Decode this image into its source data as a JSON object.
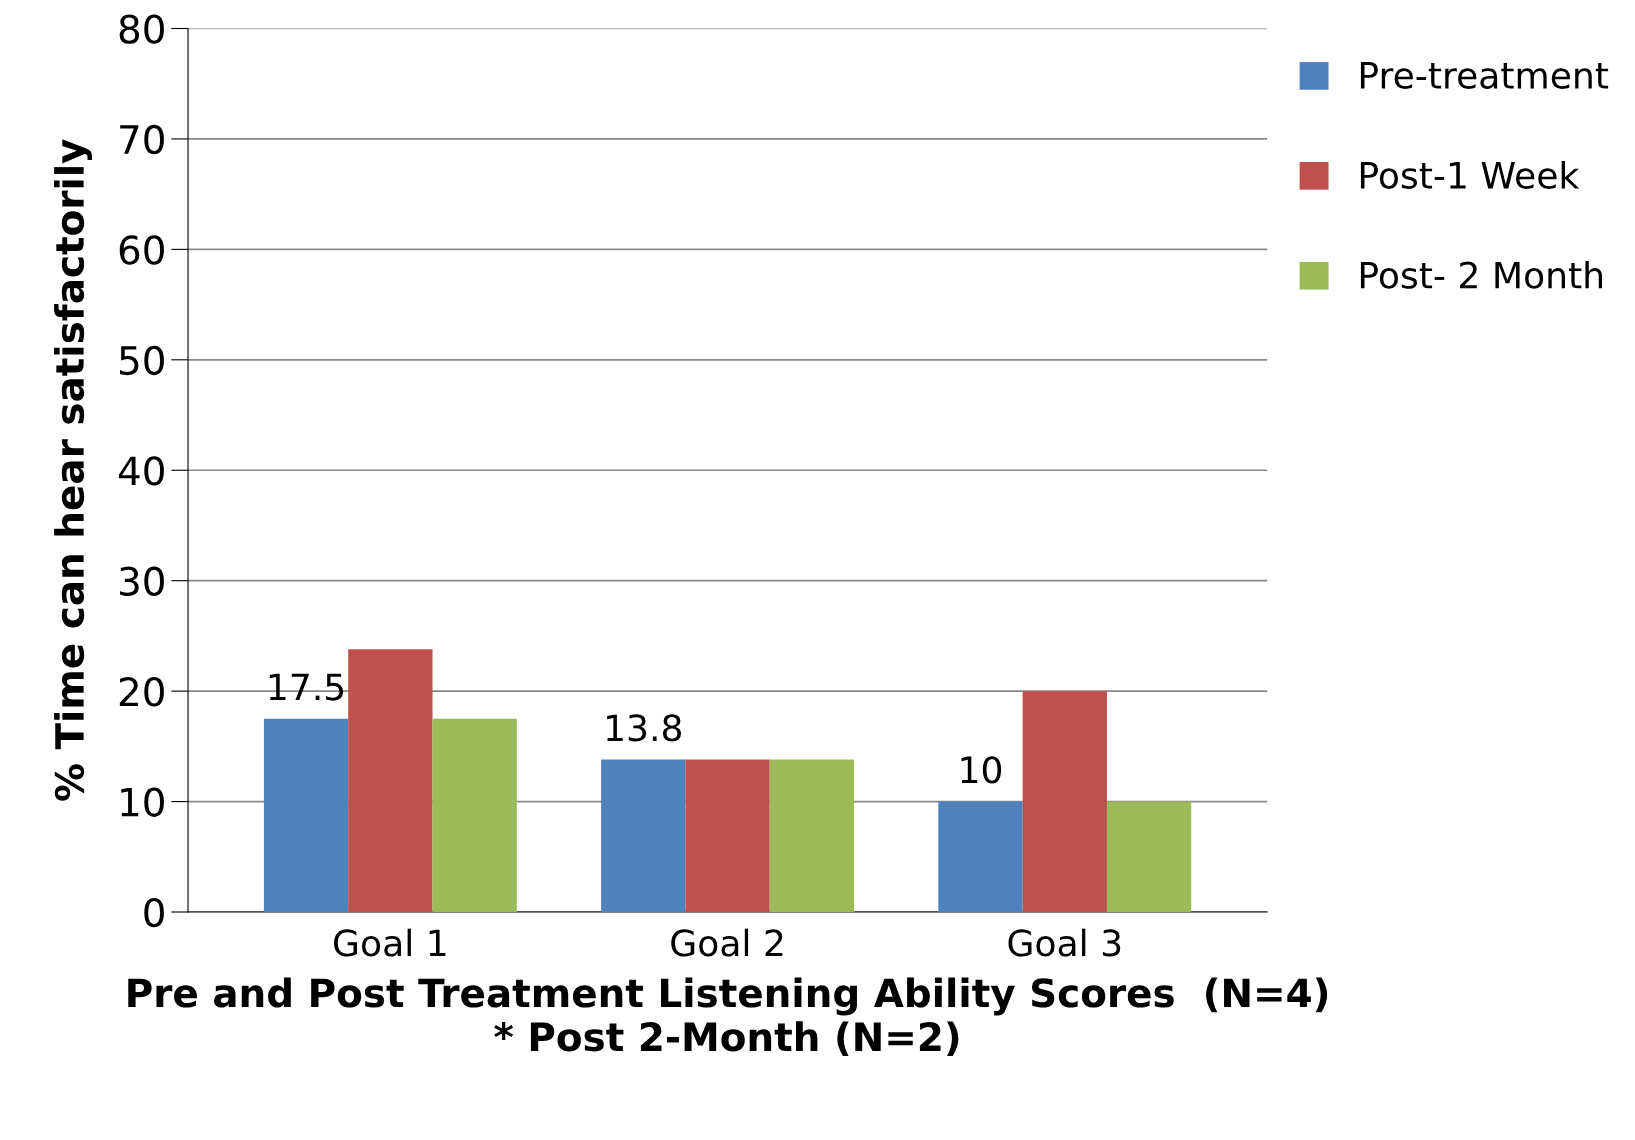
{
  "chart_data": {
    "type": "bar",
    "xlabel": "Pre and Post Treatment Listening Ability Scores  (N=4)\n* Post 2-Month (N=2)",
    "ylabel": "% Time can hear satisfactorily",
    "categories": [
      "Goal 1",
      "Goal 2",
      "Goal 3"
    ],
    "series": [
      {
        "name": "Pre-treatment",
        "color": "#4f81bd",
        "values": [
          17.5,
          13.8,
          10
        ],
        "value_labels": [
          "17.5",
          "13.8",
          "10"
        ]
      },
      {
        "name": "Post-1 Week",
        "color": "#c0504d",
        "values": [
          23.8,
          13.8,
          20
        ]
      },
      {
        "name": "Post- 2 Month",
        "color": "#9bbb59",
        "values": [
          17.5,
          13.8,
          10
        ]
      }
    ],
    "ylim": [
      0,
      80
    ],
    "yticks": [
      0,
      10,
      20,
      30,
      40,
      50,
      60,
      70,
      80
    ],
    "grid": "y",
    "legend": "top right"
  }
}
